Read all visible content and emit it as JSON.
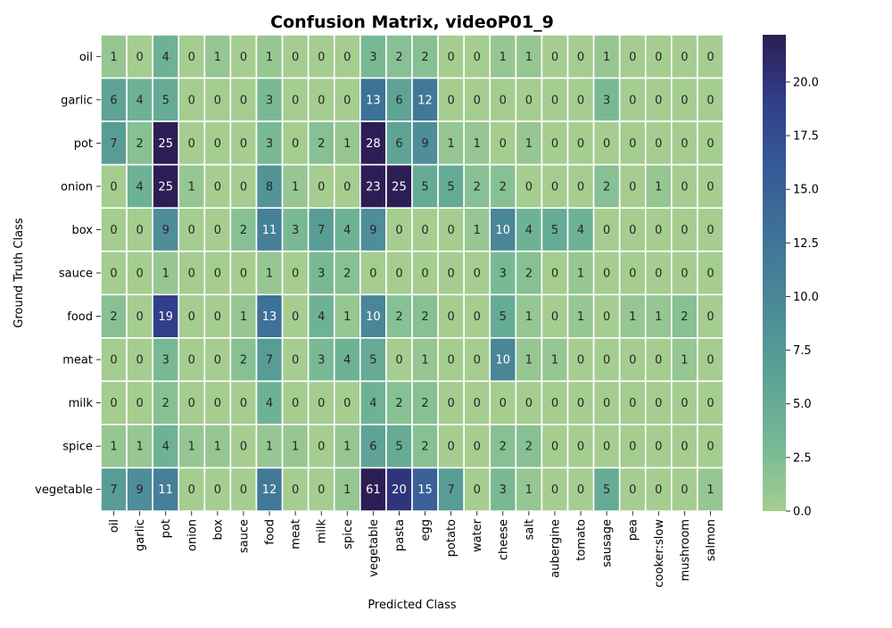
{
  "chart_data": {
    "type": "heatmap",
    "title": "Confusion Matrix, videoP01_9",
    "xlabel": "Predicted Class",
    "ylabel": "Ground Truth Class",
    "x_categories": [
      "oil",
      "garlic",
      "pot",
      "onion",
      "box",
      "sauce",
      "food",
      "meat",
      "milk",
      "spice",
      "vegetable",
      "pasta",
      "egg",
      "potato",
      "water",
      "cheese",
      "salt",
      "aubergine",
      "tomato",
      "sausage",
      "pea",
      "cooker:slow",
      "mushroom",
      "salmon"
    ],
    "y_categories": [
      "oil",
      "garlic",
      "pot",
      "onion",
      "box",
      "sauce",
      "food",
      "meat",
      "milk",
      "spice",
      "vegetable"
    ],
    "values": [
      [
        1,
        0,
        4,
        0,
        1,
        0,
        1,
        0,
        0,
        0,
        3,
        2,
        2,
        0,
        0,
        1,
        1,
        0,
        0,
        1,
        0,
        0,
        0,
        0
      ],
      [
        6,
        4,
        5,
        0,
        0,
        0,
        3,
        0,
        0,
        0,
        13,
        6,
        12,
        0,
        0,
        0,
        0,
        0,
        0,
        3,
        0,
        0,
        0,
        0
      ],
      [
        7,
        2,
        25,
        0,
        0,
        0,
        3,
        0,
        2,
        1,
        28,
        6,
        9,
        1,
        1,
        0,
        1,
        0,
        0,
        0,
        0,
        0,
        0,
        0
      ],
      [
        0,
        4,
        25,
        1,
        0,
        0,
        8,
        1,
        0,
        0,
        23,
        25,
        5,
        5,
        2,
        2,
        0,
        0,
        0,
        2,
        0,
        1,
        0,
        0
      ],
      [
        0,
        0,
        9,
        0,
        0,
        2,
        11,
        3,
        7,
        4,
        9,
        0,
        0,
        0,
        1,
        10,
        4,
        5,
        4,
        0,
        0,
        0,
        0,
        0
      ],
      [
        0,
        0,
        1,
        0,
        0,
        0,
        1,
        0,
        3,
        2,
        0,
        0,
        0,
        0,
        0,
        3,
        2,
        0,
        1,
        0,
        0,
        0,
        0,
        0
      ],
      [
        2,
        0,
        19,
        0,
        0,
        1,
        13,
        0,
        4,
        1,
        10,
        2,
        2,
        0,
        0,
        5,
        1,
        0,
        1,
        0,
        1,
        1,
        2,
        0
      ],
      [
        0,
        0,
        3,
        0,
        0,
        2,
        7,
        0,
        3,
        4,
        5,
        0,
        1,
        0,
        0,
        10,
        1,
        1,
        0,
        0,
        0,
        0,
        1,
        0
      ],
      [
        0,
        0,
        2,
        0,
        0,
        0,
        4,
        0,
        0,
        0,
        4,
        2,
        2,
        0,
        0,
        0,
        0,
        0,
        0,
        0,
        0,
        0,
        0,
        0
      ],
      [
        1,
        1,
        4,
        1,
        1,
        0,
        1,
        1,
        0,
        1,
        6,
        5,
        2,
        0,
        0,
        2,
        2,
        0,
        0,
        0,
        0,
        0,
        0,
        0
      ],
      [
        7,
        9,
        11,
        0,
        0,
        0,
        12,
        0,
        0,
        1,
        61,
        20,
        15,
        7,
        0,
        3,
        1,
        0,
        0,
        5,
        0,
        0,
        0,
        1
      ]
    ],
    "colorscale": {
      "name": "crest",
      "vmin": 0,
      "vmax": 22.2,
      "stops": [
        "#a5cd90",
        "#75b894",
        "#5ba196",
        "#4b8a98",
        "#3f7398",
        "#375b96",
        "#313f8a",
        "#2c1e55"
      ]
    },
    "colorbar_ticks": [
      "0.0",
      "2.5",
      "5.0",
      "7.5",
      "10.0",
      "12.5",
      "15.0",
      "17.5",
      "20.0"
    ],
    "grid": false,
    "legend": "colorbar-right"
  }
}
